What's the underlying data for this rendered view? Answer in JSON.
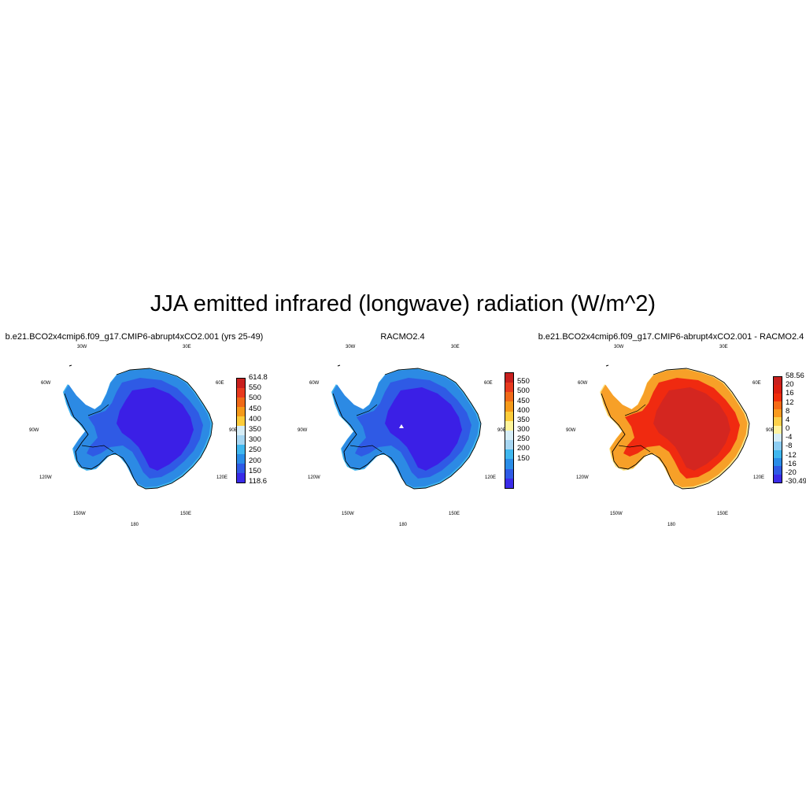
{
  "title": "JJA emitted infrared (longwave) radiation (W/m^2)",
  "panels": [
    {
      "title": "b.e21.BCO2x4cmip6.f09_g17.CMIP6-abrupt4xCO2.001 (yrs 25-49)",
      "lon_labels": [
        "30W",
        "30E",
        "60W",
        "60E",
        "90W",
        "90E",
        "120W",
        "120E",
        "150W",
        "150E",
        "180"
      ],
      "colorbar": {
        "labels": [
          "614.8",
          "550",
          "500",
          "450",
          "400",
          "350",
          "300",
          "250",
          "200",
          "150",
          "118.6"
        ],
        "colors": [
          "#c8201e",
          "#e83a1e",
          "#f06a18",
          "#f59a1a",
          "#fccc3a",
          "#d6edf6",
          "#a6d6f2",
          "#3fb7ef",
          "#2a8de8",
          "#2f5be6",
          "#3a2be8"
        ]
      },
      "map": {
        "inner": "#3b1fe6",
        "mid": "#2f5ae5",
        "outer": "#2c8ae4",
        "edge": "#41b6ef"
      }
    },
    {
      "title": "RACMO2.4",
      "lon_labels": [
        "30W",
        "30E",
        "60W",
        "60E",
        "90W",
        "90E",
        "120W",
        "120E",
        "150W",
        "150E",
        "180"
      ],
      "colorbar": {
        "labels": [
          "550",
          "500",
          "450",
          "400",
          "350",
          "300",
          "250",
          "200",
          "150"
        ],
        "colors": [
          "#c8201e",
          "#e83a1e",
          "#f06a18",
          "#f59a1a",
          "#fccc3a",
          "#fff59a",
          "#d6edf6",
          "#a6d6f2",
          "#3fb7ef",
          "#2a8de8",
          "#2f5be6",
          "#3a2be8"
        ]
      },
      "map": {
        "inner": "#3b1fe6",
        "mid": "#2f5ae5",
        "outer": "#2c8ae4",
        "edge": "#41b6ef"
      }
    },
    {
      "title": "b.e21.BCO2x4cmip6.f09_g17.CMIP6-abrupt4xCO2.001 - RACMO2.4",
      "lon_labels": [
        "30W",
        "30E",
        "60W",
        "60E",
        "90W",
        "90E",
        "120W",
        "120E",
        "150W",
        "150E",
        "180"
      ],
      "colorbar": {
        "labels": [
          "58.56",
          "20",
          "16",
          "12",
          "8",
          "4",
          "0",
          "-4",
          "-8",
          "-12",
          "-16",
          "-20",
          "-30.49"
        ],
        "colors": [
          "#c8201e",
          "#dc1e10",
          "#f02d0a",
          "#f56a14",
          "#f99a1e",
          "#fcd04a",
          "#fff3a0",
          "#d6edf6",
          "#8ccdf2",
          "#3fb7ef",
          "#2a8de8",
          "#2f5be6",
          "#3a2be8"
        ]
      },
      "map": {
        "inner": "#d42620",
        "mid": "#f02a10",
        "outer": "#f7a028",
        "edge": "#fde68a"
      }
    }
  ]
}
